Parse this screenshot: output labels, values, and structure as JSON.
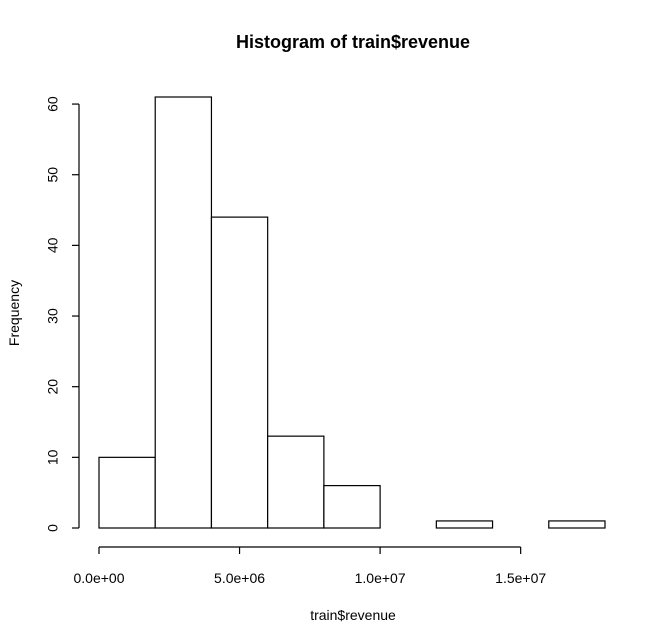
{
  "chart_data": {
    "type": "bar",
    "title": "Histogram of train$revenue",
    "xlabel": "train$revenue",
    "ylabel": "Frequency",
    "bins": [
      {
        "start": 0,
        "end": 2000000,
        "count": 10
      },
      {
        "start": 2000000,
        "end": 4000000,
        "count": 61
      },
      {
        "start": 4000000,
        "end": 6000000,
        "count": 44
      },
      {
        "start": 6000000,
        "end": 8000000,
        "count": 13
      },
      {
        "start": 8000000,
        "end": 10000000,
        "count": 6
      },
      {
        "start": 10000000,
        "end": 12000000,
        "count": 0
      },
      {
        "start": 12000000,
        "end": 14000000,
        "count": 1
      },
      {
        "start": 14000000,
        "end": 16000000,
        "count": 0
      },
      {
        "start": 16000000,
        "end": 18000000,
        "count": 1
      }
    ],
    "xlim": [
      0,
      18000000
    ],
    "ylim": [
      0,
      61
    ],
    "x_ticks": [
      0,
      5000000,
      10000000,
      15000000
    ],
    "x_tick_labels": [
      "0.0e+00",
      "5.0e+06",
      "1.0e+07",
      "1.5e+07"
    ],
    "y_ticks": [
      0,
      10,
      20,
      30,
      40,
      50,
      60
    ],
    "y_tick_labels": [
      "0",
      "10",
      "20",
      "30",
      "40",
      "50",
      "60"
    ],
    "grid": false
  }
}
